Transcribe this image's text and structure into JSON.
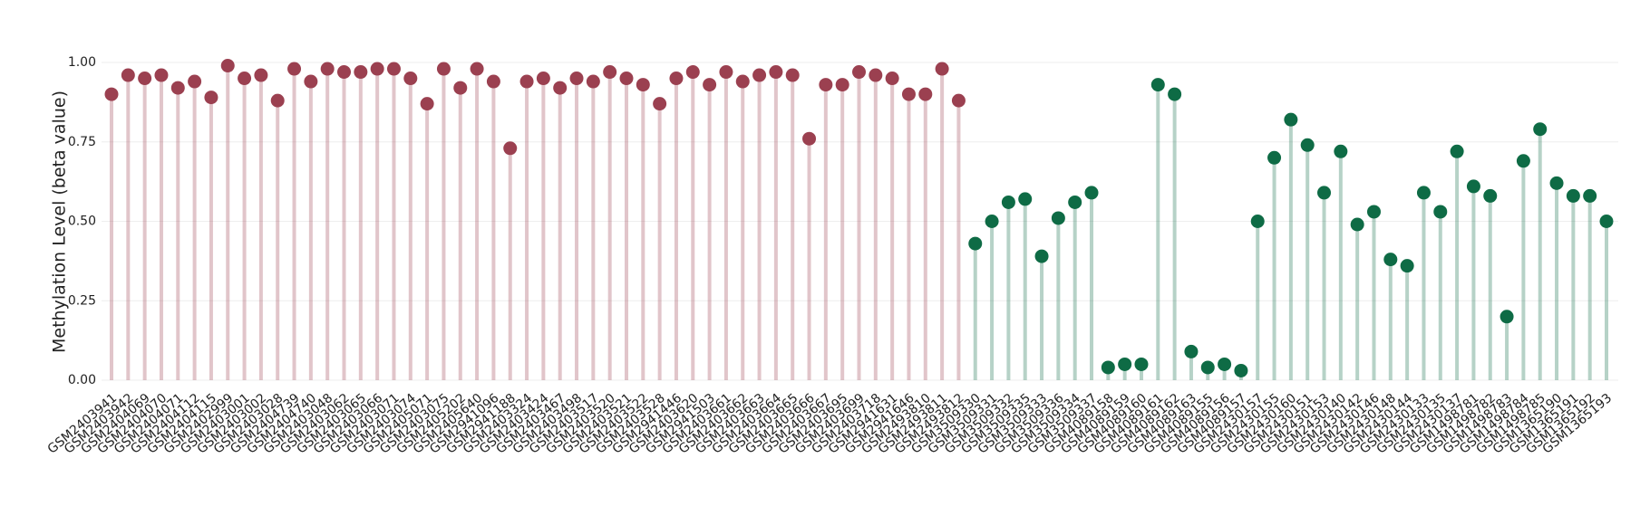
{
  "chart_data": {
    "type": "lollipop",
    "y_label": "Methylation Level (beta value)",
    "categories": [
      "GSM2403941",
      "GSM2403942",
      "GSM2404069",
      "GSM2404070",
      "GSM2404071",
      "GSM2404112",
      "GSM2404115",
      "GSM2402999",
      "GSM2403001",
      "GSM2403002",
      "GSM2403028",
      "GSM2404739",
      "GSM2404740",
      "GSM2403048",
      "GSM2403062",
      "GSM2403065",
      "GSM2403066",
      "GSM2403071",
      "GSM2403074",
      "GSM2405071",
      "GSM2403075",
      "GSM2405202",
      "GSM2405640",
      "GSM2941096",
      "GSM2941188",
      "GSM2403324",
      "GSM2403424",
      "GSM2403467",
      "GSM2403498",
      "GSM2403517",
      "GSM2403520",
      "GSM2403521",
      "GSM2403522",
      "GSM2403528",
      "GSM2941446",
      "GSM2403620",
      "GSM2941503",
      "GSM2403661",
      "GSM2403662",
      "GSM2403663",
      "GSM2403664",
      "GSM2403665",
      "GSM2403666",
      "GSM2403667",
      "GSM2403695",
      "GSM2403699",
      "GSM2403718",
      "GSM2941631",
      "GSM2941646",
      "GSM2493810",
      "GSM2493811",
      "GSM2493812",
      "GSM3509330",
      "GSM3509331",
      "GSM3509332",
      "GSM3509335",
      "GSM3509333",
      "GSM3509336",
      "GSM3509334",
      "GSM3509337",
      "GSM4089158",
      "GSM4089159",
      "GSM4089160",
      "GSM4089161",
      "GSM4089162",
      "GSM4089163",
      "GSM4089155",
      "GSM4089156",
      "GSM4089157",
      "GSM2430157",
      "GSM2430155",
      "GSM2430160",
      "GSM2430151",
      "GSM2430153",
      "GSM2430140",
      "GSM2430142",
      "GSM2430146",
      "GSM2430148",
      "GSM2430144",
      "GSM2430133",
      "GSM2430135",
      "GSM2430137",
      "GSM1498781",
      "GSM1498782",
      "GSM1498783",
      "GSM1498784",
      "GSM1498785",
      "GSM1365190",
      "GSM1365191",
      "GSM1365192",
      "GSM1365193"
    ],
    "series": [
      {
        "color": "#9b4050",
        "values": [
          0.9,
          0.96,
          0.95,
          0.96,
          0.92,
          0.94,
          0.89,
          0.99,
          0.95,
          0.96,
          0.88,
          0.98,
          0.94,
          0.98,
          0.97,
          0.97,
          0.98,
          0.98,
          0.95,
          0.87,
          0.98,
          0.92,
          0.98,
          0.94,
          0.73,
          0.94,
          0.95,
          0.92,
          0.95,
          0.94,
          0.97,
          0.95,
          0.93,
          0.87,
          0.95,
          0.97,
          0.93,
          0.97,
          0.94,
          0.96,
          0.97,
          0.96,
          0.76,
          0.93,
          0.93,
          0.97,
          0.96,
          0.95,
          0.9,
          0.9,
          0.98,
          0.88,
          null,
          null,
          null,
          null,
          null,
          null,
          null,
          null,
          null,
          null,
          null,
          null,
          null,
          null,
          null,
          null,
          null,
          null,
          null,
          null,
          null,
          null,
          null,
          null,
          null,
          null,
          null,
          null,
          null,
          null,
          null,
          null,
          null,
          null,
          null,
          null,
          null,
          null,
          null
        ]
      },
      {
        "color": "#0e6b45",
        "values": [
          null,
          null,
          null,
          null,
          null,
          null,
          null,
          null,
          null,
          null,
          null,
          null,
          null,
          null,
          null,
          null,
          null,
          null,
          null,
          null,
          null,
          null,
          null,
          null,
          null,
          null,
          null,
          null,
          null,
          null,
          null,
          null,
          null,
          null,
          null,
          null,
          null,
          null,
          null,
          null,
          null,
          null,
          null,
          null,
          null,
          null,
          null,
          null,
          null,
          null,
          null,
          null,
          0.43,
          0.5,
          0.56,
          0.57,
          0.39,
          0.51,
          0.56,
          0.59,
          0.04,
          0.05,
          0.05,
          0.93,
          0.9,
          0.09,
          0.04,
          0.05,
          0.03,
          0.5,
          0.7,
          0.82,
          0.74,
          0.59,
          0.72,
          0.49,
          0.53,
          0.38,
          0.36,
          0.59,
          0.53,
          0.72,
          0.61,
          0.58,
          0.2,
          0.69,
          0.79,
          0.62,
          0.58,
          0.58,
          0.5
        ]
      }
    ],
    "ylim": [
      0,
      1
    ],
    "yticks": [
      {
        "value": 0,
        "label": "0.00"
      },
      {
        "value": 0.25,
        "label": "0.25"
      },
      {
        "value": 0.5,
        "label": "0.50"
      },
      {
        "value": 0.75,
        "label": "0.75"
      },
      {
        "value": 1,
        "label": "1.00"
      }
    ],
    "grid": true
  }
}
